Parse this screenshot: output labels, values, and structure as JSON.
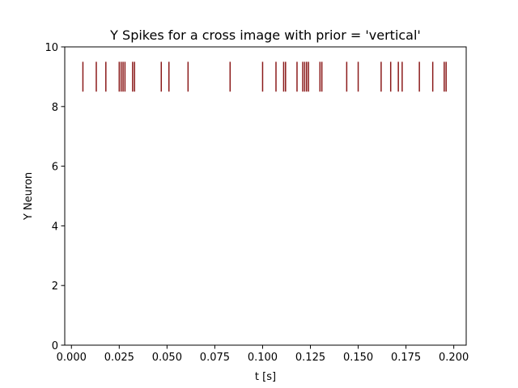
{
  "chart_data": {
    "type": "eventplot",
    "title": "Y Spikes for a cross image with prior = 'vertical'",
    "xlabel": "t [s]",
    "ylabel": "Y Neuron",
    "xlim": [
      -0.0035,
      0.2065
    ],
    "ylim": [
      0,
      10
    ],
    "x_ticks": [
      0.0,
      0.025,
      0.05,
      0.075,
      0.1,
      0.125,
      0.15,
      0.175,
      0.2
    ],
    "x_tick_labels": [
      "0.000",
      "0.025",
      "0.050",
      "0.075",
      "0.100",
      "0.125",
      "0.150",
      "0.175",
      "0.200"
    ],
    "y_ticks": [
      0,
      2,
      4,
      6,
      8,
      10
    ],
    "y_tick_labels": [
      "0",
      "2",
      "4",
      "6",
      "8",
      "10"
    ],
    "grid": false,
    "series": [
      {
        "neuron": 9,
        "line_y_range": [
          8.5,
          9.5
        ],
        "color": "#8b1a1a",
        "spike_times": [
          0.006,
          0.013,
          0.018,
          0.025,
          0.026,
          0.027,
          0.028,
          0.032,
          0.033,
          0.047,
          0.051,
          0.061,
          0.083,
          0.1,
          0.107,
          0.111,
          0.112,
          0.118,
          0.121,
          0.122,
          0.123,
          0.124,
          0.13,
          0.131,
          0.144,
          0.15,
          0.162,
          0.167,
          0.171,
          0.173,
          0.182,
          0.189,
          0.195,
          0.196
        ]
      }
    ]
  }
}
